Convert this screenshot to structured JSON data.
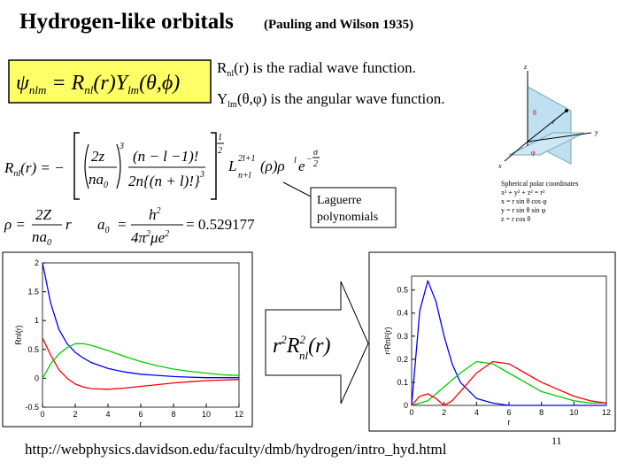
{
  "header": {
    "title": "Hydrogen-like orbitals",
    "subtitle": "(Pauling and Wilson 1935)"
  },
  "psi": [
    "ψ",
    "nlm",
    " = R",
    "nl",
    "(r)Y",
    "lm",
    "(θ,ϕ)"
  ],
  "notes": {
    "radial_r": "R",
    "radial_sub": "nl",
    "radial_text": "(r) is the radial wave function.",
    "ang_y": "Y",
    "ang_sub": "lm",
    "ang_text": "(θ,φ) is the angular wave function."
  },
  "radial": {
    "lhs": "R",
    "lhs_sub": "nl",
    "eq": "(r) = −",
    "num1": "2z",
    "den1": "na",
    "den1_sub": "0",
    "exp1": "3",
    "num2": "(n − l −1)!",
    "den2": "2n{(n + l)!}",
    "exp2": "3",
    "root_num": "1",
    "root_den": "2",
    "L": "L",
    "L_sup": "2l+1",
    "L_sub": "n+l",
    "mid": "(ρ)ρ",
    "rho_sup": "l",
    "e": "e",
    "e_minus": "−",
    "sigma": "σ",
    "sigma_den": "2"
  },
  "rho": {
    "lhs": "ρ =",
    "num": "2Z",
    "den": "na",
    "den_sub": "0",
    "r": "r"
  },
  "a0": {
    "a": "a",
    "sub": "0",
    "eq": "=",
    "num": "h",
    "num_sup": "2",
    "den": "4π",
    "den_sup": "2",
    "den2": "μe",
    "den2_sup": "2",
    "value": "= 0.529177"
  },
  "laguerre": [
    "Laguerre",
    "polynomials"
  ],
  "diagram": {
    "z": "z",
    "y": "y",
    "x": "x",
    "theta": "θ",
    "phi": "φ",
    "r": "r",
    "caption": [
      "Spherical polar coordinates",
      "x² + y² + z² = r²",
      "x = r sin θ cos φ",
      "y = r sin θ sin φ",
      "z = r cos θ"
    ]
  },
  "arrow_label": {
    "r": "r",
    "r_sup": "2",
    "R": "R",
    "R_sup": "2",
    "R_sub": "nl",
    "arg": "(r)"
  },
  "url": "http://webphysics.davidson.edu/faculty/dmb/hydrogen/intro_hyd.html",
  "page_number": "11",
  "chart_data": [
    {
      "type": "line",
      "xlabel": "r",
      "ylabel": "Rnl(r)",
      "xlim": [
        0,
        12
      ],
      "ylim": [
        -0.5,
        2
      ],
      "xticks": [
        0,
        2,
        4,
        6,
        8,
        10,
        12
      ],
      "yticks": [
        -0.5,
        0,
        0.5,
        1,
        1.5,
        2
      ],
      "x": [
        0,
        0.5,
        1,
        1.5,
        2,
        2.5,
        3,
        4,
        5,
        6,
        7,
        8,
        9,
        10,
        11,
        12
      ],
      "series": [
        {
          "color": "#0000ff",
          "values": [
            2,
            1.3,
            0.85,
            0.6,
            0.45,
            0.35,
            0.27,
            0.17,
            0.11,
            0.07,
            0.05,
            0.03,
            0.02,
            0.01,
            0.01,
            0.01
          ]
        },
        {
          "color": "#ff0000",
          "values": [
            0.7,
            0.4,
            0.15,
            0,
            -0.1,
            -0.15,
            -0.18,
            -0.19,
            -0.17,
            -0.14,
            -0.11,
            -0.08,
            -0.06,
            -0.04,
            -0.03,
            -0.02
          ]
        },
        {
          "color": "#00cc00",
          "values": [
            0,
            0.25,
            0.42,
            0.53,
            0.6,
            0.6,
            0.57,
            0.48,
            0.38,
            0.29,
            0.22,
            0.16,
            0.12,
            0.09,
            0.06,
            0.05
          ]
        }
      ]
    },
    {
      "type": "line",
      "xlabel": "r",
      "ylabel": "r²Rnl²(r)",
      "xlim": [
        0,
        12
      ],
      "ylim": [
        0,
        0.56
      ],
      "xticks": [
        0,
        2,
        4,
        6,
        8,
        10,
        12
      ],
      "yticks": [
        0,
        0.1,
        0.2,
        0.3,
        0.4,
        0.5
      ],
      "x": [
        0,
        0.5,
        1,
        1.5,
        2,
        2.5,
        3,
        4,
        5,
        6,
        7,
        8,
        9,
        10,
        11,
        12
      ],
      "series": [
        {
          "color": "#0000ff",
          "values": [
            0,
            0.41,
            0.54,
            0.45,
            0.3,
            0.18,
            0.1,
            0.03,
            0.01,
            0,
            0,
            0,
            0,
            0,
            0,
            0
          ]
        },
        {
          "color": "#00cc00",
          "values": [
            0,
            0.01,
            0.02,
            0.05,
            0.08,
            0.11,
            0.14,
            0.19,
            0.18,
            0.14,
            0.1,
            0.06,
            0.04,
            0.02,
            0.01,
            0.01
          ]
        },
        {
          "color": "#ff0000",
          "values": [
            0,
            0.04,
            0.05,
            0.03,
            0,
            0.02,
            0.06,
            0.14,
            0.19,
            0.18,
            0.14,
            0.1,
            0.07,
            0.04,
            0.02,
            0.01
          ]
        }
      ]
    }
  ]
}
